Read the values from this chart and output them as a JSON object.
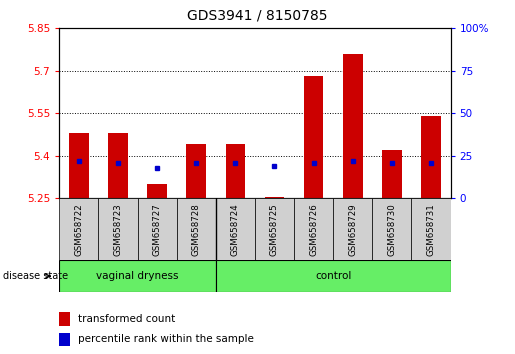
{
  "title": "GDS3941 / 8150785",
  "samples": [
    "GSM658722",
    "GSM658723",
    "GSM658727",
    "GSM658728",
    "GSM658724",
    "GSM658725",
    "GSM658726",
    "GSM658729",
    "GSM658730",
    "GSM658731"
  ],
  "transformed_count": [
    5.48,
    5.48,
    5.3,
    5.44,
    5.44,
    5.255,
    5.68,
    5.76,
    5.42,
    5.54
  ],
  "percentile_rank": [
    22,
    21,
    18,
    21,
    21,
    19,
    21,
    22,
    21,
    21
  ],
  "bar_bottom": 5.25,
  "ylim_left": [
    5.25,
    5.85
  ],
  "ylim_right": [
    0,
    100
  ],
  "yticks_left": [
    5.25,
    5.4,
    5.55,
    5.7,
    5.85
  ],
  "yticks_right": [
    0,
    25,
    50,
    75,
    100
  ],
  "ytick_labels_left": [
    "5.25",
    "5.4",
    "5.55",
    "5.7",
    "5.85"
  ],
  "ytick_labels_right": [
    "0",
    "25",
    "50",
    "75",
    "100%"
  ],
  "hlines": [
    5.4,
    5.55,
    5.7
  ],
  "group1_label": "vaginal dryness",
  "group2_label": "control",
  "group1_count": 4,
  "group2_count": 6,
  "disease_state_label": "disease state",
  "legend1": "transformed count",
  "legend2": "percentile rank within the sample",
  "bar_color": "#cc0000",
  "dot_color": "#0000cc",
  "group_bg_color": "#66ee66",
  "sample_bg_color": "#d0d0d0",
  "plot_bg_color": "#ffffff",
  "title_fontsize": 10,
  "tick_fontsize": 7.5,
  "label_fontsize": 8,
  "bar_width": 0.5
}
